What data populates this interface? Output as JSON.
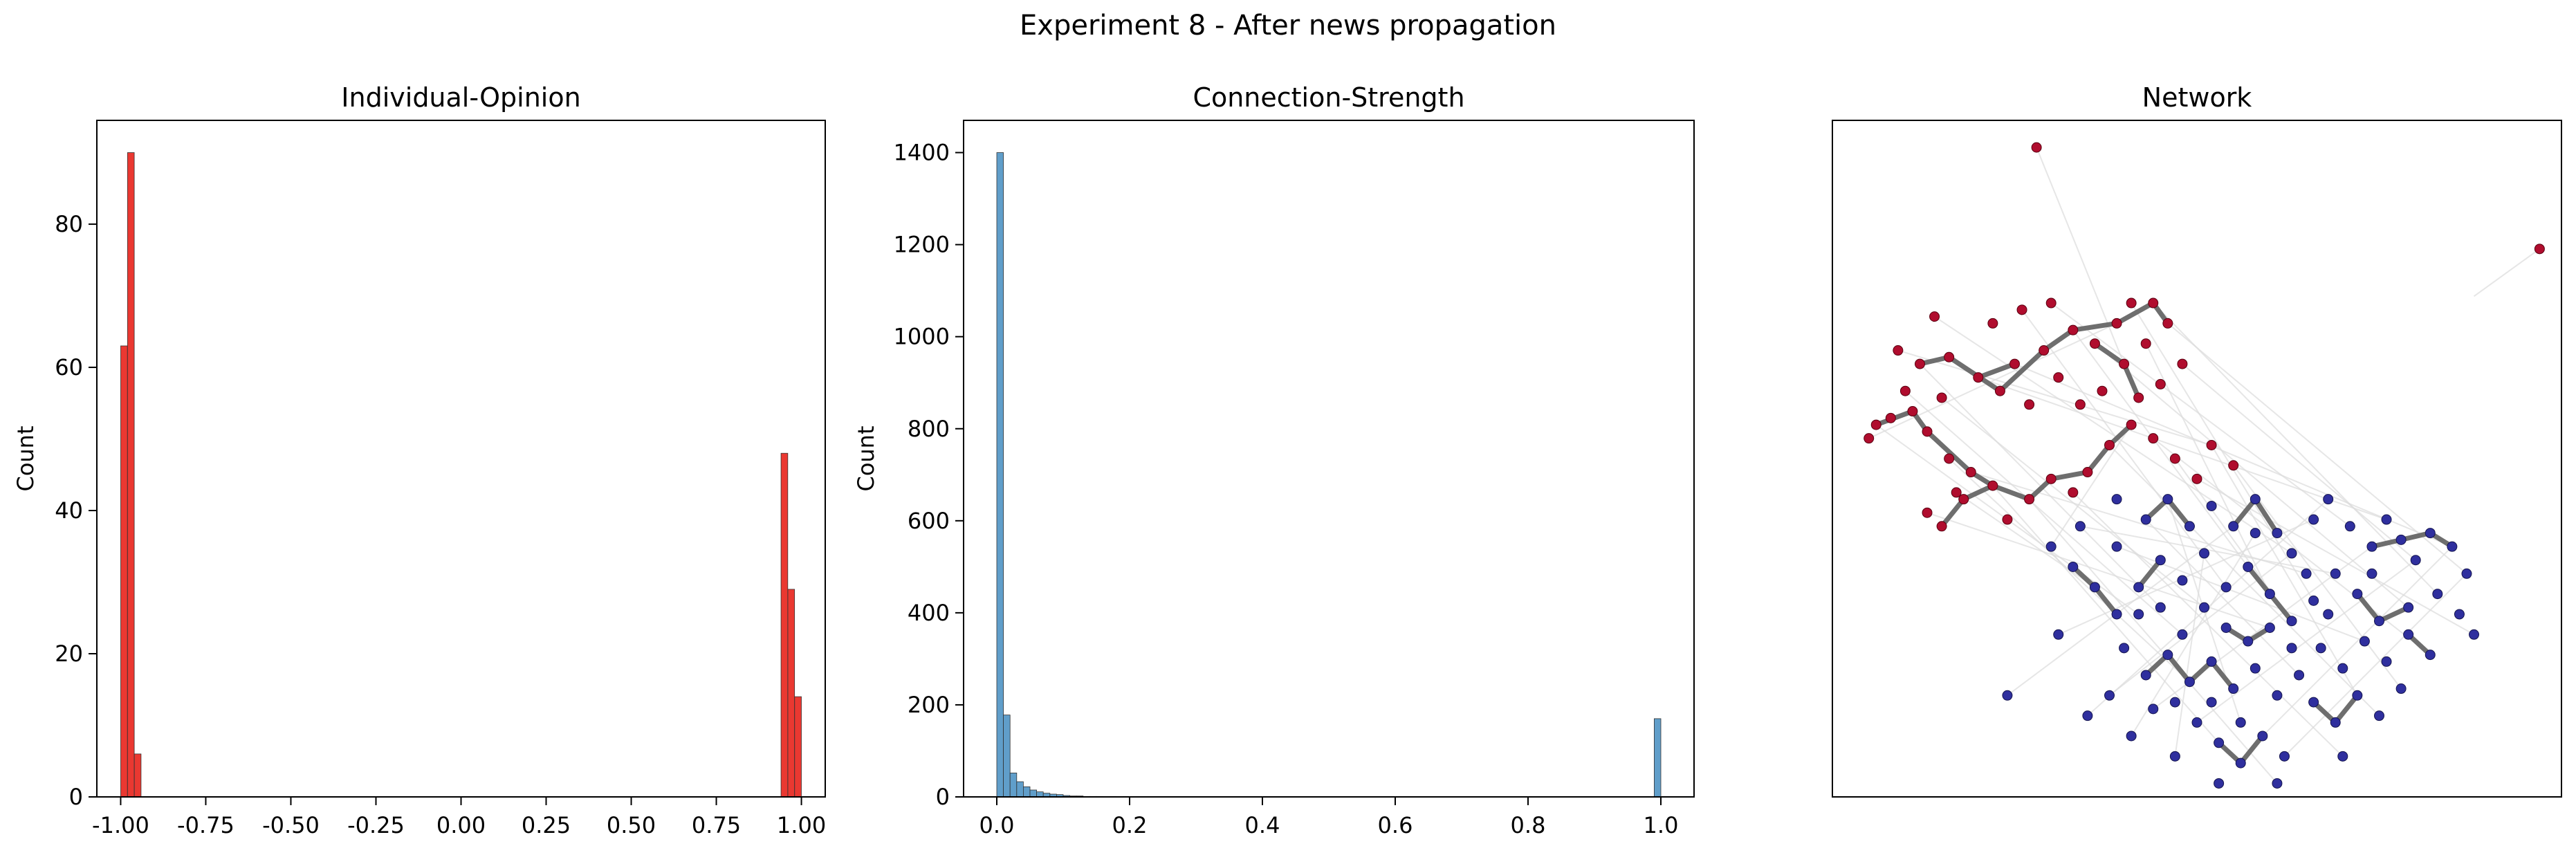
{
  "figure": {
    "title": "Experiment 8 - After news propagation"
  },
  "colors": {
    "opinion_bar": "#e8221b",
    "strength_bar": "#4f93c4",
    "node_negative": "#b00d2e",
    "node_positive": "#2f2f9e",
    "strong_edge": "#6e6e6e",
    "weak_edge": "#dcdcdc"
  },
  "chart_data": [
    {
      "type": "bar",
      "title": "Individual-Opinion",
      "xlabel": "",
      "ylabel": "Count",
      "xlim": [
        -1.07,
        1.07
      ],
      "ylim": [
        0,
        94.5
      ],
      "xticks": [
        "-1.00",
        "-0.75",
        "-0.50",
        "-0.25",
        "0.00",
        "0.25",
        "0.50",
        "0.75",
        "1.00"
      ],
      "xtick_values": [
        -1.0,
        -0.75,
        -0.5,
        -0.25,
        0.0,
        0.25,
        0.5,
        0.75,
        1.0
      ],
      "yticks": [
        0,
        20,
        40,
        60,
        80
      ],
      "bin_width": 0.0198,
      "bins": [
        {
          "x": -0.99,
          "count": 63
        },
        {
          "x": -0.97,
          "count": 90
        },
        {
          "x": -0.95,
          "count": 6
        },
        {
          "x": 0.95,
          "count": 48
        },
        {
          "x": 0.97,
          "count": 29
        },
        {
          "x": 0.99,
          "count": 14
        }
      ]
    },
    {
      "type": "bar",
      "title": "Connection-Strength",
      "xlabel": "",
      "ylabel": "Count",
      "xlim": [
        -0.05,
        1.05
      ],
      "ylim": [
        0,
        1470
      ],
      "xticks": [
        "0.0",
        "0.2",
        "0.4",
        "0.6",
        "0.8",
        "1.0"
      ],
      "xtick_values": [
        0.0,
        0.2,
        0.4,
        0.6,
        0.8,
        1.0
      ],
      "yticks": [
        0,
        200,
        400,
        600,
        800,
        1000,
        1200,
        1400
      ],
      "bin_width": 0.01,
      "bins": [
        {
          "x": 0.005,
          "count": 1400
        },
        {
          "x": 0.015,
          "count": 178
        },
        {
          "x": 0.025,
          "count": 52
        },
        {
          "x": 0.035,
          "count": 33
        },
        {
          "x": 0.045,
          "count": 22
        },
        {
          "x": 0.055,
          "count": 15
        },
        {
          "x": 0.065,
          "count": 11
        },
        {
          "x": 0.075,
          "count": 8
        },
        {
          "x": 0.085,
          "count": 6
        },
        {
          "x": 0.095,
          "count": 5
        },
        {
          "x": 0.105,
          "count": 3
        },
        {
          "x": 0.115,
          "count": 2
        },
        {
          "x": 0.125,
          "count": 2
        },
        {
          "x": 0.135,
          "count": 1
        },
        {
          "x": 0.145,
          "count": 1
        },
        {
          "x": 0.155,
          "count": 1
        },
        {
          "x": 0.175,
          "count": 1
        },
        {
          "x": 0.195,
          "count": 1
        },
        {
          "x": 0.995,
          "count": 170
        }
      ]
    },
    {
      "type": "network",
      "title": "Network",
      "xlim": [
        0,
        1
      ],
      "ylim": [
        0,
        1
      ],
      "nodes_negative": [
        [
          0.28,
          0.96
        ],
        [
          0.97,
          0.81
        ],
        [
          0.14,
          0.71
        ],
        [
          0.22,
          0.7
        ],
        [
          0.26,
          0.72
        ],
        [
          0.3,
          0.73
        ],
        [
          0.33,
          0.69
        ],
        [
          0.36,
          0.67
        ],
        [
          0.39,
          0.7
        ],
        [
          0.41,
          0.73
        ],
        [
          0.44,
          0.73
        ],
        [
          0.46,
          0.7
        ],
        [
          0.43,
          0.67
        ],
        [
          0.4,
          0.64
        ],
        [
          0.37,
          0.6
        ],
        [
          0.34,
          0.58
        ],
        [
          0.31,
          0.62
        ],
        [
          0.29,
          0.66
        ],
        [
          0.25,
          0.64
        ],
        [
          0.23,
          0.6
        ],
        [
          0.2,
          0.62
        ],
        [
          0.16,
          0.65
        ],
        [
          0.12,
          0.64
        ],
        [
          0.09,
          0.66
        ],
        [
          0.06,
          0.55
        ],
        [
          0.05,
          0.53
        ],
        [
          0.08,
          0.56
        ],
        [
          0.11,
          0.57
        ],
        [
          0.13,
          0.54
        ],
        [
          0.16,
          0.5
        ],
        [
          0.19,
          0.48
        ],
        [
          0.22,
          0.46
        ],
        [
          0.17,
          0.45
        ],
        [
          0.13,
          0.42
        ],
        [
          0.15,
          0.4
        ],
        [
          0.18,
          0.44
        ],
        [
          0.24,
          0.41
        ],
        [
          0.27,
          0.44
        ],
        [
          0.3,
          0.47
        ],
        [
          0.33,
          0.45
        ],
        [
          0.35,
          0.48
        ],
        [
          0.38,
          0.52
        ],
        [
          0.41,
          0.55
        ],
        [
          0.44,
          0.53
        ],
        [
          0.47,
          0.5
        ],
        [
          0.5,
          0.47
        ],
        [
          0.52,
          0.52
        ],
        [
          0.55,
          0.49
        ],
        [
          0.45,
          0.61
        ],
        [
          0.48,
          0.64
        ],
        [
          0.42,
          0.59
        ],
        [
          0.27,
          0.58
        ],
        [
          0.1,
          0.6
        ],
        [
          0.15,
          0.59
        ]
      ],
      "nodes_positive": [
        [
          0.34,
          0.4
        ],
        [
          0.39,
          0.37
        ],
        [
          0.43,
          0.41
        ],
        [
          0.46,
          0.44
        ],
        [
          0.49,
          0.4
        ],
        [
          0.52,
          0.43
        ],
        [
          0.55,
          0.4
        ],
        [
          0.58,
          0.44
        ],
        [
          0.61,
          0.39
        ],
        [
          0.63,
          0.36
        ],
        [
          0.66,
          0.41
        ],
        [
          0.68,
          0.44
        ],
        [
          0.71,
          0.4
        ],
        [
          0.74,
          0.37
        ],
        [
          0.76,
          0.41
        ],
        [
          0.78,
          0.38
        ],
        [
          0.8,
          0.35
        ],
        [
          0.82,
          0.39
        ],
        [
          0.85,
          0.37
        ],
        [
          0.87,
          0.33
        ],
        [
          0.83,
          0.3
        ],
        [
          0.79,
          0.28
        ],
        [
          0.75,
          0.26
        ],
        [
          0.72,
          0.3
        ],
        [
          0.69,
          0.33
        ],
        [
          0.66,
          0.29
        ],
        [
          0.63,
          0.26
        ],
        [
          0.6,
          0.3
        ],
        [
          0.57,
          0.34
        ],
        [
          0.54,
          0.31
        ],
        [
          0.51,
          0.28
        ],
        [
          0.48,
          0.32
        ],
        [
          0.45,
          0.35
        ],
        [
          0.42,
          0.31
        ],
        [
          0.39,
          0.27
        ],
        [
          0.36,
          0.31
        ],
        [
          0.33,
          0.34
        ],
        [
          0.3,
          0.37
        ],
        [
          0.4,
          0.22
        ],
        [
          0.43,
          0.18
        ],
        [
          0.46,
          0.21
        ],
        [
          0.49,
          0.17
        ],
        [
          0.52,
          0.2
        ],
        [
          0.55,
          0.16
        ],
        [
          0.58,
          0.19
        ],
        [
          0.61,
          0.15
        ],
        [
          0.64,
          0.18
        ],
        [
          0.67,
          0.22
        ],
        [
          0.7,
          0.19
        ],
        [
          0.73,
          0.23
        ],
        [
          0.76,
          0.2
        ],
        [
          0.79,
          0.24
        ],
        [
          0.82,
          0.21
        ],
        [
          0.5,
          0.11
        ],
        [
          0.53,
          0.08
        ],
        [
          0.56,
          0.05
        ],
        [
          0.59,
          0.09
        ],
        [
          0.62,
          0.06
        ],
        [
          0.47,
          0.06
        ],
        [
          0.44,
          0.13
        ],
        [
          0.41,
          0.09
        ],
        [
          0.38,
          0.15
        ],
        [
          0.35,
          0.12
        ],
        [
          0.54,
          0.25
        ],
        [
          0.57,
          0.23
        ],
        [
          0.6,
          0.25
        ],
        [
          0.63,
          0.22
        ],
        [
          0.66,
          0.14
        ],
        [
          0.69,
          0.11
        ],
        [
          0.72,
          0.15
        ],
        [
          0.75,
          0.12
        ],
        [
          0.78,
          0.16
        ],
        [
          0.7,
          0.06
        ],
        [
          0.24,
          0.15
        ],
        [
          0.31,
          0.24
        ],
        [
          0.48,
          0.24
        ],
        [
          0.51,
          0.36
        ],
        [
          0.68,
          0.27
        ],
        [
          0.74,
          0.33
        ],
        [
          0.86,
          0.27
        ],
        [
          0.88,
          0.24
        ],
        [
          0.65,
          0.33
        ],
        [
          0.42,
          0.27
        ],
        [
          0.45,
          0.28
        ],
        [
          0.47,
          0.14
        ],
        [
          0.52,
          0.14
        ],
        [
          0.56,
          0.11
        ],
        [
          0.53,
          0.02
        ],
        [
          0.61,
          0.02
        ],
        [
          0.39,
          0.44
        ],
        [
          0.58,
          0.39
        ]
      ],
      "edges_strong": [
        [
          0.16,
          0.65,
          0.23,
          0.6
        ],
        [
          0.23,
          0.6,
          0.29,
          0.66
        ],
        [
          0.29,
          0.66,
          0.33,
          0.69
        ],
        [
          0.33,
          0.69,
          0.39,
          0.7
        ],
        [
          0.39,
          0.7,
          0.44,
          0.73
        ],
        [
          0.44,
          0.73,
          0.46,
          0.7
        ],
        [
          0.36,
          0.67,
          0.4,
          0.64
        ],
        [
          0.4,
          0.64,
          0.42,
          0.59
        ],
        [
          0.25,
          0.64,
          0.2,
          0.62
        ],
        [
          0.12,
          0.64,
          0.16,
          0.65
        ],
        [
          0.06,
          0.55,
          0.11,
          0.57
        ],
        [
          0.11,
          0.57,
          0.13,
          0.54
        ],
        [
          0.13,
          0.54,
          0.19,
          0.48
        ],
        [
          0.19,
          0.48,
          0.22,
          0.46
        ],
        [
          0.22,
          0.46,
          0.27,
          0.44
        ],
        [
          0.27,
          0.44,
          0.3,
          0.47
        ],
        [
          0.3,
          0.47,
          0.35,
          0.48
        ],
        [
          0.35,
          0.48,
          0.38,
          0.52
        ],
        [
          0.38,
          0.52,
          0.41,
          0.55
        ],
        [
          0.15,
          0.4,
          0.18,
          0.44
        ],
        [
          0.18,
          0.44,
          0.22,
          0.46
        ],
        [
          0.33,
          0.34,
          0.36,
          0.31
        ],
        [
          0.36,
          0.31,
          0.39,
          0.27
        ],
        [
          0.43,
          0.41,
          0.46,
          0.44
        ],
        [
          0.46,
          0.44,
          0.49,
          0.4
        ],
        [
          0.55,
          0.4,
          0.58,
          0.44
        ],
        [
          0.58,
          0.44,
          0.61,
          0.39
        ],
        [
          0.74,
          0.37,
          0.78,
          0.38
        ],
        [
          0.78,
          0.38,
          0.82,
          0.39
        ],
        [
          0.82,
          0.39,
          0.85,
          0.37
        ],
        [
          0.79,
          0.28,
          0.75,
          0.26
        ],
        [
          0.75,
          0.26,
          0.72,
          0.3
        ],
        [
          0.63,
          0.26,
          0.6,
          0.3
        ],
        [
          0.6,
          0.3,
          0.57,
          0.34
        ],
        [
          0.42,
          0.31,
          0.45,
          0.35
        ],
        [
          0.43,
          0.18,
          0.46,
          0.21
        ],
        [
          0.46,
          0.21,
          0.49,
          0.17
        ],
        [
          0.49,
          0.17,
          0.52,
          0.2
        ],
        [
          0.52,
          0.2,
          0.55,
          0.16
        ],
        [
          0.53,
          0.08,
          0.56,
          0.05
        ],
        [
          0.56,
          0.05,
          0.59,
          0.09
        ],
        [
          0.66,
          0.14,
          0.69,
          0.11
        ],
        [
          0.69,
          0.11,
          0.72,
          0.15
        ],
        [
          0.79,
          0.24,
          0.82,
          0.21
        ],
        [
          0.54,
          0.25,
          0.57,
          0.23
        ],
        [
          0.57,
          0.23,
          0.6,
          0.25
        ]
      ],
      "edges_weak": [
        [
          0.05,
          0.53,
          0.39,
          0.7
        ],
        [
          0.09,
          0.66,
          0.52,
          0.52
        ],
        [
          0.14,
          0.71,
          0.63,
          0.36
        ],
        [
          0.2,
          0.62,
          0.76,
          0.41
        ],
        [
          0.25,
          0.64,
          0.85,
          0.37
        ],
        [
          0.3,
          0.73,
          0.71,
          0.4
        ],
        [
          0.36,
          0.67,
          0.79,
          0.28
        ],
        [
          0.41,
          0.73,
          0.66,
          0.29
        ],
        [
          0.46,
          0.7,
          0.87,
          0.33
        ],
        [
          0.48,
          0.64,
          0.8,
          0.35
        ],
        [
          0.13,
          0.42,
          0.6,
          0.25
        ],
        [
          0.16,
          0.5,
          0.49,
          0.17
        ],
        [
          0.22,
          0.46,
          0.53,
          0.08
        ],
        [
          0.27,
          0.44,
          0.61,
          0.02
        ],
        [
          0.33,
          0.45,
          0.7,
          0.06
        ],
        [
          0.38,
          0.52,
          0.75,
          0.12
        ],
        [
          0.44,
          0.53,
          0.82,
          0.21
        ],
        [
          0.5,
          0.47,
          0.88,
          0.24
        ],
        [
          0.24,
          0.15,
          0.55,
          0.4
        ],
        [
          0.31,
          0.24,
          0.66,
          0.41
        ],
        [
          0.34,
          0.4,
          0.69,
          0.33
        ],
        [
          0.39,
          0.37,
          0.73,
          0.23
        ],
        [
          0.43,
          0.41,
          0.64,
          0.18
        ],
        [
          0.46,
          0.44,
          0.56,
          0.11
        ],
        [
          0.51,
          0.36,
          0.47,
          0.06
        ],
        [
          0.58,
          0.39,
          0.41,
          0.09
        ],
        [
          0.63,
          0.36,
          0.38,
          0.15
        ],
        [
          0.68,
          0.44,
          0.35,
          0.12
        ],
        [
          0.74,
          0.37,
          0.44,
          0.13
        ],
        [
          0.8,
          0.35,
          0.5,
          0.11
        ],
        [
          0.85,
          0.37,
          0.59,
          0.09
        ],
        [
          0.87,
          0.33,
          0.62,
          0.06
        ],
        [
          0.12,
          0.64,
          0.45,
          0.28
        ],
        [
          0.06,
          0.55,
          0.42,
          0.27
        ],
        [
          0.1,
          0.6,
          0.48,
          0.24
        ],
        [
          0.15,
          0.59,
          0.51,
          0.28
        ],
        [
          0.26,
          0.72,
          0.54,
          0.31
        ],
        [
          0.33,
          0.69,
          0.57,
          0.34
        ],
        [
          0.43,
          0.67,
          0.6,
          0.3
        ],
        [
          0.47,
          0.5,
          0.63,
          0.26
        ],
        [
          0.28,
          0.96,
          0.4,
          0.64
        ],
        [
          0.97,
          0.81,
          0.88,
          0.74
        ],
        [
          0.55,
          0.49,
          0.78,
          0.16
        ],
        [
          0.52,
          0.52,
          0.72,
          0.15
        ],
        [
          0.41,
          0.55,
          0.3,
          0.37
        ],
        [
          0.17,
          0.45,
          0.36,
          0.31
        ],
        [
          0.19,
          0.48,
          0.65,
          0.33
        ],
        [
          0.44,
          0.73,
          0.83,
          0.3
        ]
      ]
    }
  ]
}
